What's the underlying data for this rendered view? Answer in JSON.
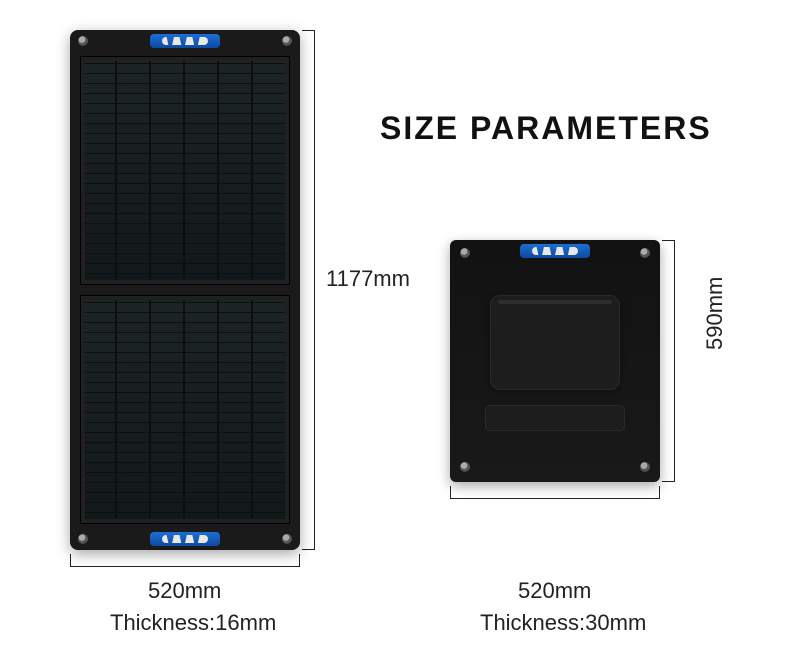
{
  "title": "SIZE PARAMETERS",
  "open": {
    "height": "1177mm",
    "width": "520mm",
    "thickness": "Thickness:16mm"
  },
  "folded": {
    "height": "590mm",
    "width": "520mm",
    "thickness": "Thickness:30mm"
  },
  "colors": {
    "panel": "#1a1a1a",
    "handle": "#1e6ed6",
    "text": "#111111",
    "background": "#ffffff"
  }
}
